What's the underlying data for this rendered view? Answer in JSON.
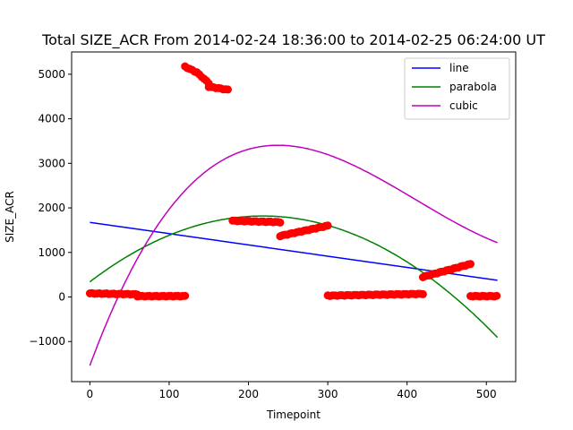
{
  "chart_data": {
    "type": "scatter",
    "title": "Total SIZE_ACR From 2014-02-24 18:36:00 to 2014-02-25 06:24:00 UT",
    "xlabel": "Timepoint",
    "ylabel": "SIZE_ACR",
    "xlim": [
      -23,
      537
    ],
    "ylim": [
      -1900,
      5500
    ],
    "xticks": [
      0,
      100,
      200,
      300,
      400,
      500
    ],
    "yticks": [
      -1000,
      0,
      1000,
      2000,
      3000,
      4000,
      5000
    ],
    "xtick_labels": [
      "0",
      "100",
      "200",
      "300",
      "400",
      "500"
    ],
    "ytick_labels": [
      "−1000",
      "0",
      "1000",
      "2000",
      "3000",
      "4000",
      "5000"
    ],
    "grid": false,
    "legend_position": "top-right",
    "scatter_color": "#ff0000",
    "points": {
      "segments": [
        {
          "x": [
            0,
            60
          ],
          "y": [
            80,
            60
          ]
        },
        {
          "x": [
            60,
            120
          ],
          "y": [
            20,
            20
          ]
        },
        {
          "x": [
            120,
            135
          ],
          "y": [
            5170,
            5040
          ]
        },
        {
          "x": [
            135,
            150
          ],
          "y": [
            5040,
            4800
          ]
        },
        {
          "x": [
            150,
            175
          ],
          "y": [
            4720,
            4650
          ]
        },
        {
          "x": [
            180,
            240
          ],
          "y": [
            1710,
            1680
          ]
        },
        {
          "x": [
            240,
            300
          ],
          "y": [
            1370,
            1600
          ]
        },
        {
          "x": [
            300,
            420
          ],
          "y": [
            30,
            70
          ]
        },
        {
          "x": [
            420,
            480
          ],
          "y": [
            450,
            740
          ]
        },
        {
          "x": [
            480,
            515
          ],
          "y": [
            20,
            20
          ]
        }
      ],
      "step": 3
    },
    "series": [
      {
        "name": "line",
        "color": "#0000ff",
        "kind": "polynomial",
        "coeffs": [
          1675,
          -2.53
        ]
      },
      {
        "name": "parabola",
        "color": "#008000",
        "kind": "polynomial",
        "coeffs": [
          340,
          13.56,
          -0.03111
        ]
      },
      {
        "name": "cubic",
        "color": "#bf00bf",
        "kind": "polynomial",
        "coeffs": [
          -1540,
          48.2,
          -0.1427,
          0.0001155
        ]
      }
    ],
    "x_end": 515
  }
}
